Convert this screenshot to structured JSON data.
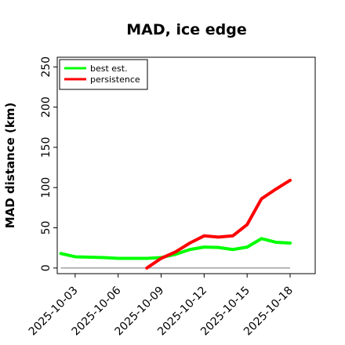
{
  "chart_data": {
    "type": "line",
    "title": "MAD, ice edge",
    "xlabel": "",
    "ylabel": "MAD distance (km)",
    "x": [
      "2025-10-02",
      "2025-10-03",
      "2025-10-04",
      "2025-10-05",
      "2025-10-06",
      "2025-10-07",
      "2025-10-08",
      "2025-10-09",
      "2025-10-10",
      "2025-10-11",
      "2025-10-12",
      "2025-10-13",
      "2025-10-14",
      "2025-10-15",
      "2025-10-16",
      "2025-10-17",
      "2025-10-18"
    ],
    "x_ticks": [
      "2025-10-03",
      "2025-10-06",
      "2025-10-09",
      "2025-10-12",
      "2025-10-15",
      "2025-10-18"
    ],
    "y_ticks": [
      0,
      50,
      100,
      150,
      200,
      250
    ],
    "xlim": [
      "2025-10-01T18:00",
      "2025-10-19T18:00"
    ],
    "ylim": [
      -7,
      262
    ],
    "legend": "top-left",
    "grid": false,
    "zero_line": {
      "y": 0,
      "color": "#808080"
    },
    "series": [
      {
        "name": "best est.",
        "color": "#00ff00",
        "values": [
          18,
          14,
          13.5,
          13,
          12,
          12,
          12,
          13,
          17,
          23,
          26,
          25.5,
          23,
          26,
          36.5,
          32,
          31
        ]
      },
      {
        "name": "persistence",
        "color": "#ff0000",
        "values": [
          null,
          null,
          null,
          null,
          null,
          null,
          0,
          12,
          20,
          31,
          40,
          38.5,
          40,
          54,
          86,
          98,
          109
        ]
      }
    ]
  }
}
